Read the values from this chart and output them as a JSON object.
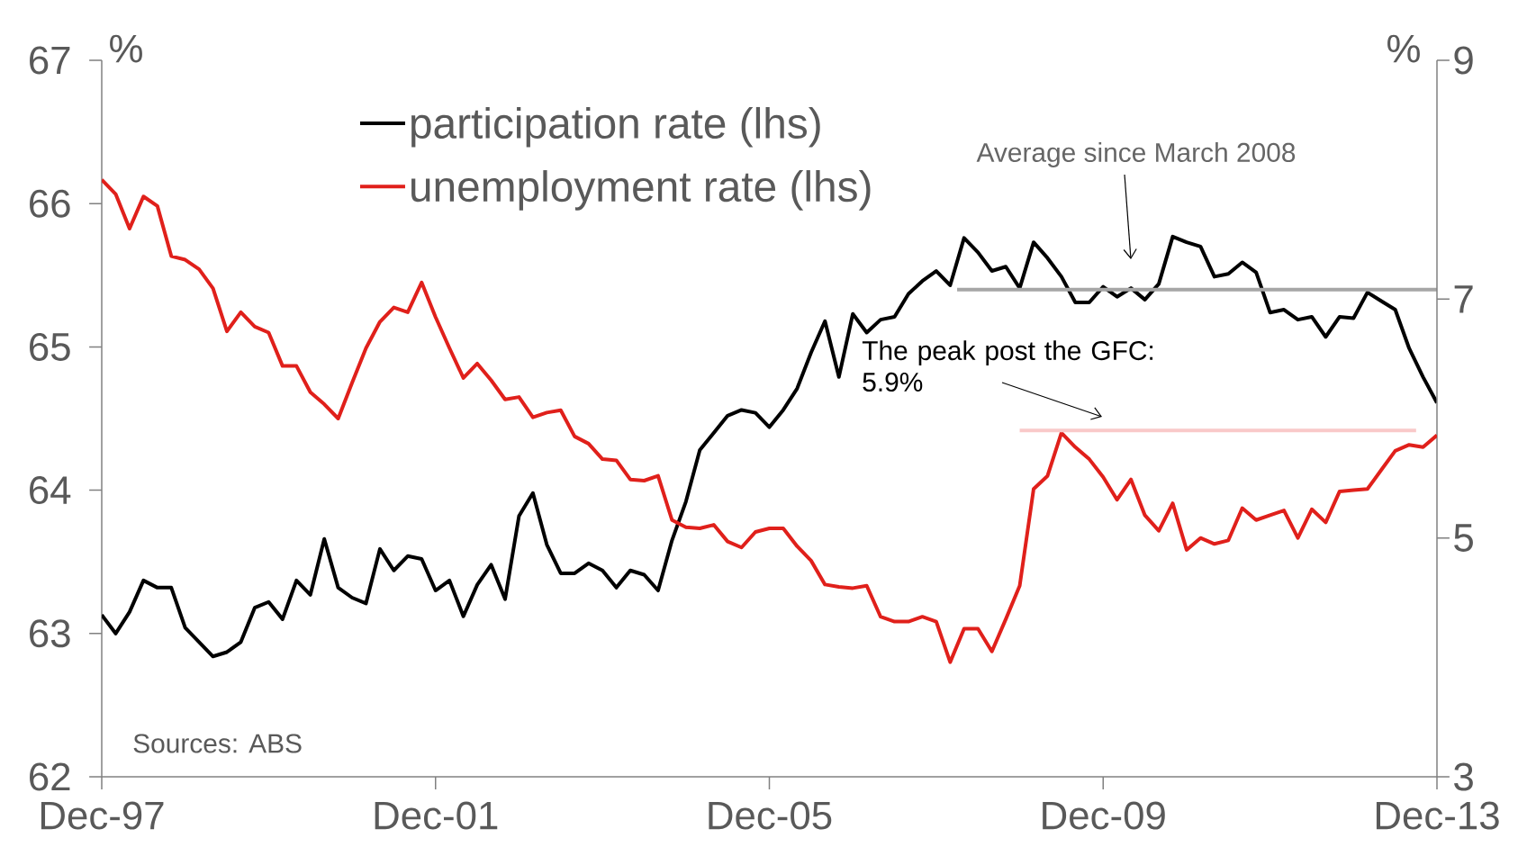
{
  "chart_data": {
    "type": "line",
    "ylabel": "%",
    "y2label": "%",
    "xlim": [
      "1997-12",
      "2013-12"
    ],
    "xticks": [
      {
        "value": "1997-12",
        "label": "Dec-97"
      },
      {
        "value": "2001-12",
        "label": "Dec-01"
      },
      {
        "value": "2005-12",
        "label": "Dec-05"
      },
      {
        "value": "2009-12",
        "label": "Dec-09"
      },
      {
        "value": "2013-12",
        "label": "Dec-13"
      }
    ],
    "ylim": [
      62,
      67
    ],
    "yticks": [
      62,
      63,
      64,
      65,
      66,
      67
    ],
    "y2lim": [
      3,
      9
    ],
    "y2ticks": [
      3,
      5,
      7,
      9
    ],
    "legend": "top left",
    "x": [
      "1997-12",
      "1998-02",
      "1998-04",
      "1998-06",
      "1998-08",
      "1998-10",
      "1998-12",
      "1999-02",
      "1999-04",
      "1999-06",
      "1999-08",
      "1999-10",
      "1999-12",
      "2000-02",
      "2000-04",
      "2000-06",
      "2000-08",
      "2000-10",
      "2000-12",
      "2001-02",
      "2001-04",
      "2001-06",
      "2001-08",
      "2001-10",
      "2001-12",
      "2002-02",
      "2002-04",
      "2002-06",
      "2002-08",
      "2002-10",
      "2002-12",
      "2003-02",
      "2003-04",
      "2003-06",
      "2003-08",
      "2003-10",
      "2003-12",
      "2004-02",
      "2004-04",
      "2004-06",
      "2004-08",
      "2004-10",
      "2004-12",
      "2005-02",
      "2005-04",
      "2005-06",
      "2005-08",
      "2005-10",
      "2005-12",
      "2006-02",
      "2006-04",
      "2006-06",
      "2006-08",
      "2006-10",
      "2006-12",
      "2007-02",
      "2007-04",
      "2007-06",
      "2007-08",
      "2007-10",
      "2007-12",
      "2008-02",
      "2008-04",
      "2008-06",
      "2008-08",
      "2008-10",
      "2008-12",
      "2009-02",
      "2009-04",
      "2009-06",
      "2009-08",
      "2009-10",
      "2009-12",
      "2010-02",
      "2010-04",
      "2010-06",
      "2010-08",
      "2010-10",
      "2010-12",
      "2011-02",
      "2011-04",
      "2011-06",
      "2011-08",
      "2011-10",
      "2011-12",
      "2012-02",
      "2012-04",
      "2012-06",
      "2012-08",
      "2012-10",
      "2012-12",
      "2013-02",
      "2013-04",
      "2013-06",
      "2013-08",
      "2013-10",
      "2013-12"
    ],
    "series": [
      {
        "name": "participation rate (lhs)",
        "color": "#000000",
        "values": [
          63.13,
          63.0,
          63.15,
          63.37,
          63.32,
          63.32,
          63.04,
          62.94,
          62.84,
          62.87,
          62.94,
          63.18,
          63.22,
          63.1,
          63.37,
          63.27,
          63.66,
          63.32,
          63.25,
          63.21,
          63.59,
          63.44,
          63.54,
          63.52,
          63.3,
          63.37,
          63.12,
          63.34,
          63.48,
          63.24,
          63.82,
          63.98,
          63.62,
          63.42,
          63.42,
          63.49,
          63.44,
          63.32,
          63.44,
          63.41,
          63.3,
          63.65,
          63.92,
          64.28,
          64.4,
          64.52,
          64.56,
          64.54,
          64.44,
          64.56,
          64.71,
          64.96,
          65.18,
          64.79,
          65.23,
          65.1,
          65.19,
          65.21,
          65.37,
          65.46,
          65.53,
          65.43,
          65.76,
          65.66,
          65.53,
          65.56,
          65.41,
          65.73,
          65.62,
          65.49,
          65.31,
          65.31,
          65.42,
          65.35,
          65.41,
          65.33,
          65.44,
          65.77,
          65.73,
          65.7,
          65.49,
          65.51,
          65.59,
          65.52,
          65.24,
          65.26,
          65.19,
          65.21,
          65.07,
          65.21,
          65.2,
          65.38,
          65.32,
          65.26,
          64.99,
          64.79,
          64.61
        ]
      },
      {
        "name": "unemployment rate (lhs)",
        "color": "#e0201b",
        "axis": "y2",
        "values": [
          8.0,
          7.88,
          7.59,
          7.86,
          7.78,
          7.36,
          7.33,
          7.25,
          7.09,
          6.73,
          6.89,
          6.77,
          6.72,
          6.44,
          6.44,
          6.22,
          6.12,
          6.0,
          6.3,
          6.59,
          6.81,
          6.93,
          6.89,
          7.14,
          6.85,
          6.59,
          6.34,
          6.46,
          6.32,
          6.16,
          6.18,
          6.01,
          6.05,
          6.07,
          5.85,
          5.79,
          5.66,
          5.65,
          5.49,
          5.48,
          5.52,
          5.15,
          5.09,
          5.08,
          5.11,
          4.97,
          4.92,
          5.05,
          5.08,
          5.08,
          4.93,
          4.81,
          4.61,
          4.59,
          4.58,
          4.6,
          4.34,
          4.3,
          4.3,
          4.34,
          4.3,
          3.96,
          4.24,
          4.24,
          4.05,
          4.32,
          4.6,
          5.41,
          5.52,
          5.88,
          5.76,
          5.66,
          5.51,
          5.32,
          5.49,
          5.19,
          5.06,
          5.29,
          4.9,
          5.0,
          4.95,
          4.98,
          5.25,
          5.15,
          5.19,
          5.23,
          5.0,
          5.24,
          5.13,
          5.39,
          5.4,
          5.41,
          5.57,
          5.73,
          5.78,
          5.76,
          5.86
        ]
      },
      {
        "color": "#a6a6a6",
        "x": [
          "2008-03",
          "2013-12"
        ],
        "values": [
          65.4,
          65.4
        ]
      },
      {
        "color": "#f9c9c9",
        "axis": "y2",
        "x": [
          "2008-12",
          "2013-09"
        ],
        "values": [
          5.9,
          5.9
        ]
      }
    ],
    "annotations": [
      "Average since March 2008",
      "The peak post the GFC: 5.9%",
      "Sources: ABS"
    ]
  }
}
